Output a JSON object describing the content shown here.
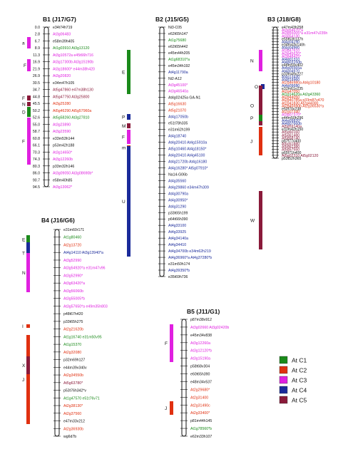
{
  "legend": [
    {
      "label": "At C1",
      "color": "#1a8a1a"
    },
    {
      "label": "At C2",
      "color": "#e03010"
    },
    {
      "label": "At C3",
      "color": "#e020e0"
    },
    {
      "label": "At C4",
      "color": "#1a2a9a"
    },
    {
      "label": "At C5",
      "color": "#8a1a3a"
    }
  ],
  "colors": {
    "C1": "#1a8a1a",
    "C2": "#e03010",
    "C3": "#e020e0",
    "C4": "#1a2a9a",
    "C5": "#8a1a3a",
    "black": "#111111",
    "orange": "#f07020"
  },
  "groups": [
    {
      "title": "B1 (J17/G7)",
      "positions": [
        "0.0",
        "2.8",
        "6.7",
        "8.9",
        "11.3",
        "16.9",
        "21.9",
        "26.9",
        "30.5",
        "34.7",
        "44.8",
        "45.5",
        "50.2",
        "52.6",
        "55.0",
        "58.7",
        "60.8",
        "66.1",
        "70.3",
        "74.3",
        "80.3",
        "86.0",
        "90.7",
        "94.5",
        "109.4"
      ],
      "markers": [
        {
          "t": "e34t74h719",
          "c": "black"
        },
        {
          "t": "At3g06483",
          "c": "C3"
        },
        {
          "t": "e58m39h405",
          "c": "black"
        },
        {
          "t": "At1g03910 At3g13120",
          "c": "C1"
        },
        {
          "t": "At3g10572a e45t66h716",
          "c": "C3"
        },
        {
          "t": "At3g17300b At3g15190b",
          "c": "C3"
        },
        {
          "t": "At3g18600* e44m38h420",
          "c": "C3"
        },
        {
          "t": "At3g20820",
          "c": "C3"
        },
        {
          "t": "e34m47h105",
          "c": "black"
        },
        {
          "t": "At5g47860 e47m38h130",
          "c": "C5"
        },
        {
          "t": "At5g47750 At3g25800",
          "c": "C5"
        },
        {
          "t": "At3g25280",
          "c": "C2"
        },
        {
          "t": "At5g46290 At5g57960a",
          "c": "C2"
        },
        {
          "t": "At5g58260 At3g27810",
          "c": "C1"
        },
        {
          "t": "At3g23890",
          "c": "C3"
        },
        {
          "t": "At3g23590",
          "c": "C3"
        },
        {
          "t": "e33m53h144",
          "c": "black"
        },
        {
          "t": "p53m42h188",
          "c": "black"
        },
        {
          "t": "At3g14650*",
          "c": "C3"
        },
        {
          "t": "At3g12260b",
          "c": "C3"
        },
        {
          "t": "p33m32h146",
          "c": "black"
        },
        {
          "t": "At3g09050 At3g08690b*",
          "c": "C3"
        },
        {
          "t": "e58m40h85",
          "c": "black"
        },
        {
          "t": "At3g13062*",
          "c": "C3"
        }
      ]
    },
    {
      "title": "B2 (J15/G5)",
      "markers": [
        {
          "t": "Ni3-C05",
          "c": "black"
        },
        {
          "t": "e62t65h147",
          "c": "black"
        },
        {
          "t": "At1g75680",
          "c": "C1"
        },
        {
          "t": "e62t65h442",
          "c": "black"
        },
        {
          "t": "e45m44h205",
          "c": "black"
        },
        {
          "t": "At1g68310*a",
          "c": "C1"
        },
        {
          "t": "e45m34h192",
          "c": "black"
        },
        {
          "t": "At4g11790a",
          "c": "C4"
        },
        {
          "t": "Ni2-A12",
          "c": "black"
        },
        {
          "t": "At3g45100*",
          "c": "C3"
        },
        {
          "t": "At3g46540a",
          "c": "C3"
        },
        {
          "t": "At4g02425a GA-N1",
          "c": "black"
        },
        {
          "t": "At5g16630",
          "c": "C2"
        },
        {
          "t": "At5g21070",
          "c": "C2"
        },
        {
          "t": "At4g17050b",
          "c": "C4"
        },
        {
          "t": "e51t78h335",
          "c": "black"
        },
        {
          "t": "e31m62h199",
          "c": "black"
        },
        {
          "t": "At4g18740",
          "c": "C4"
        },
        {
          "t": "At4g20410 At4g15910a",
          "c": "C4"
        },
        {
          "t": "At5g10460 At4g18150*",
          "c": "C4"
        },
        {
          "t": "At4g20410 At4g45100",
          "c": "C4"
        },
        {
          "t": "At4g21720b At4g16180",
          "c": "C4"
        },
        {
          "t": "At4g16280* At5g07910*",
          "c": "C4"
        },
        {
          "t": "Na14-G06b",
          "c": "black"
        },
        {
          "t": "At4g35560",
          "c": "C4"
        },
        {
          "t": "At4g29860 e34m47h309",
          "c": "C4"
        },
        {
          "t": "At4g30790a",
          "c": "C4"
        },
        {
          "t": "At4g30950*",
          "c": "C4"
        },
        {
          "t": "At4g31290",
          "c": "C4"
        },
        {
          "t": "p33t65h199",
          "c": "black"
        },
        {
          "t": "p64t66h390",
          "c": "black"
        },
        {
          "t": "At4g33100",
          "c": "C4"
        },
        {
          "t": "At4g33925",
          "c": "C4"
        },
        {
          "t": "At4g34140a",
          "c": "C4"
        },
        {
          "t": "At4g34410",
          "c": "C4"
        },
        {
          "t": "At4g34700b e34m62h219",
          "c": "C4"
        },
        {
          "t": "At4g36960*a At4g37280*b",
          "c": "C4"
        },
        {
          "t": "e31m50h174",
          "c": "black"
        },
        {
          "t": "At4g39350*b",
          "c": "C4"
        },
        {
          "t": "e35t69h736",
          "c": "black"
        }
      ]
    },
    {
      "title": "B3 (J18/G8)",
      "markers": [
        {
          "t": "e47m43h258",
          "c": "black"
        },
        {
          "t": "At3g54670*a",
          "c": "C3"
        },
        {
          "t": "At3g55005*a e31m47v235h",
          "c": "C3"
        },
        {
          "t": "At3g54130",
          "c": "C3"
        },
        {
          "t": "e55t63h137h",
          "c": "black"
        },
        {
          "t": "At4g04190",
          "c": "C4"
        },
        {
          "t": "e34m43v140h",
          "c": "black"
        },
        {
          "t": "At4g04960",
          "c": "C4"
        },
        {
          "t": "At3g47610",
          "c": "C3"
        },
        {
          "t": "At3g45620*",
          "c": "C3"
        },
        {
          "t": "At3g48425*",
          "c": "C3"
        },
        {
          "t": "At4g01310",
          "c": "C4"
        },
        {
          "t": "At4g03150b",
          "c": "C4"
        },
        {
          "t": "e48m59v402",
          "c": "black"
        },
        {
          "t": "At4g05565a",
          "c": "C4"
        },
        {
          "t": "At4g04970",
          "c": "C4"
        },
        {
          "t": "p33m49v227",
          "c": "black"
        },
        {
          "t": "At4g13430",
          "c": "C4"
        },
        {
          "t": "At4g14960",
          "c": "C4"
        },
        {
          "t": "At2g46980a At4g10180",
          "c": "C2"
        },
        {
          "t": "At4g09680",
          "c": "C4"
        },
        {
          "t": "e31m61v235",
          "c": "black"
        },
        {
          "t": "At2g47050",
          "c": "C2"
        },
        {
          "t": "At1g14620a At2g43360",
          "c": "C1"
        },
        {
          "t": "At2g44050",
          "c": "C2"
        },
        {
          "t": "At2g40785a p33m87v470",
          "c": "C2"
        },
        {
          "t": "At2g41830 At2g44000",
          "c": "C2"
        },
        {
          "t": "At2g45690b At2g36530*a",
          "c": "C2"
        },
        {
          "t": "e50t70v238",
          "c": "black"
        },
        {
          "t": "At2g07340",
          "c": "C2"
        },
        {
          "t": "At3g07370*",
          "c": "C3"
        },
        {
          "t": "e44m50h296",
          "c": "black"
        },
        {
          "t": "At4g09820*",
          "c": "C4"
        },
        {
          "t": "At4g07660b",
          "c": "C4"
        },
        {
          "t": "At5g59140a",
          "c": "C5"
        },
        {
          "t": "e31m42h150",
          "c": "black"
        },
        {
          "t": "At5g60160",
          "c": "C5"
        },
        {
          "t": "At5g61480",
          "c": "C5"
        },
        {
          "t": "At5g58140",
          "c": "C5"
        },
        {
          "t": "p87t77v400",
          "c": "black"
        },
        {
          "t": "At5g51880",
          "c": "C5"
        },
        {
          "t": "At5g61380",
          "c": "C5"
        },
        {
          "t": "At5g57550",
          "c": "C5"
        },
        {
          "t": "p65t71h400",
          "c": "black"
        },
        {
          "t": "At5g02310 At5g02120",
          "c": "C5"
        },
        {
          "t": "p53t52h365",
          "c": "black"
        }
      ]
    },
    {
      "title": "B4 (J16/G6)",
      "markers": [
        {
          "t": "e31m60r171",
          "c": "black"
        },
        {
          "t": "At1g80460",
          "c": "C1"
        },
        {
          "t": "At2g13720",
          "c": "C2"
        },
        {
          "t": "At4g14110 At3g13940*a",
          "c": "C4"
        },
        {
          "t": "At3g52990",
          "c": "C3"
        },
        {
          "t": "At3g54920*a e31m47v96",
          "c": "C3"
        },
        {
          "t": "At3g52990*",
          "c": "C3"
        },
        {
          "t": "At3g63420*a",
          "c": "C3"
        },
        {
          "t": "At3g56060b",
          "c": "C3"
        },
        {
          "t": "At3g55005*b",
          "c": "C3"
        },
        {
          "t": "At3g57650*a e49m35h803",
          "c": "C3"
        },
        {
          "t": "p48t67h420",
          "c": "black"
        },
        {
          "t": "p33t65h275",
          "c": "black"
        },
        {
          "t": "At2g21620b",
          "c": "C2"
        },
        {
          "t": "At1g16740 e31m50v95",
          "c": "C1"
        },
        {
          "t": "At1g15370",
          "c": "C1"
        },
        {
          "t": "At2g32080",
          "c": "C2"
        },
        {
          "t": "p32m69h127",
          "c": "black"
        },
        {
          "t": "e44m39v340v",
          "c": "black"
        },
        {
          "t": "At2g34550b",
          "c": "C2"
        },
        {
          "t": "At5g63780*",
          "c": "C5"
        },
        {
          "t": "p53t76h342*v",
          "c": "black"
        },
        {
          "t": "At1g47570 e51t76v71",
          "c": "C1"
        },
        {
          "t": "At2g38130*",
          "c": "C2"
        },
        {
          "t": "At2g37560",
          "c": "C2"
        },
        {
          "t": "e47m33v212",
          "c": "black"
        },
        {
          "t": "At2g36930b",
          "c": "C2"
        },
        {
          "t": "wg6d7b",
          "c": "black"
        }
      ]
    },
    {
      "title": "B5 (J11/G1)",
      "markers": [
        {
          "t": "p87m38v912",
          "c": "black"
        },
        {
          "t": "At3g02660 At3g02420b",
          "c": "C3"
        },
        {
          "t": "e45m34v838",
          "c": "black"
        },
        {
          "t": "At3g12260a",
          "c": "C3"
        },
        {
          "t": "At3g12120*b",
          "c": "C3"
        },
        {
          "t": "At3g15190a",
          "c": "C3"
        },
        {
          "t": "p58t68v304",
          "c": "black"
        },
        {
          "t": "e60t65h390",
          "c": "black"
        },
        {
          "t": "e48m34v537",
          "c": "black"
        },
        {
          "t": "At2g29680*",
          "c": "C2"
        },
        {
          "t": "At2g31400",
          "c": "C2"
        },
        {
          "t": "At2g31490c",
          "c": "C2"
        },
        {
          "t": "At2g33400*",
          "c": "C2"
        },
        {
          "t": "p81m44h145",
          "c": "black"
        },
        {
          "t": "At1g78560*b",
          "c": "C1"
        },
        {
          "t": "e62m33h107",
          "c": "black"
        }
      ]
    }
  ],
  "block_labels": [
    "F",
    "a",
    "Q",
    "N",
    "D",
    "F",
    "E",
    "P",
    "M",
    "F",
    "m",
    "U",
    "N",
    "O",
    "O",
    "P",
    "J",
    "J",
    "W",
    "R",
    "E",
    "T",
    "N",
    "I",
    "J",
    "X",
    "J",
    "F",
    "J"
  ]
}
